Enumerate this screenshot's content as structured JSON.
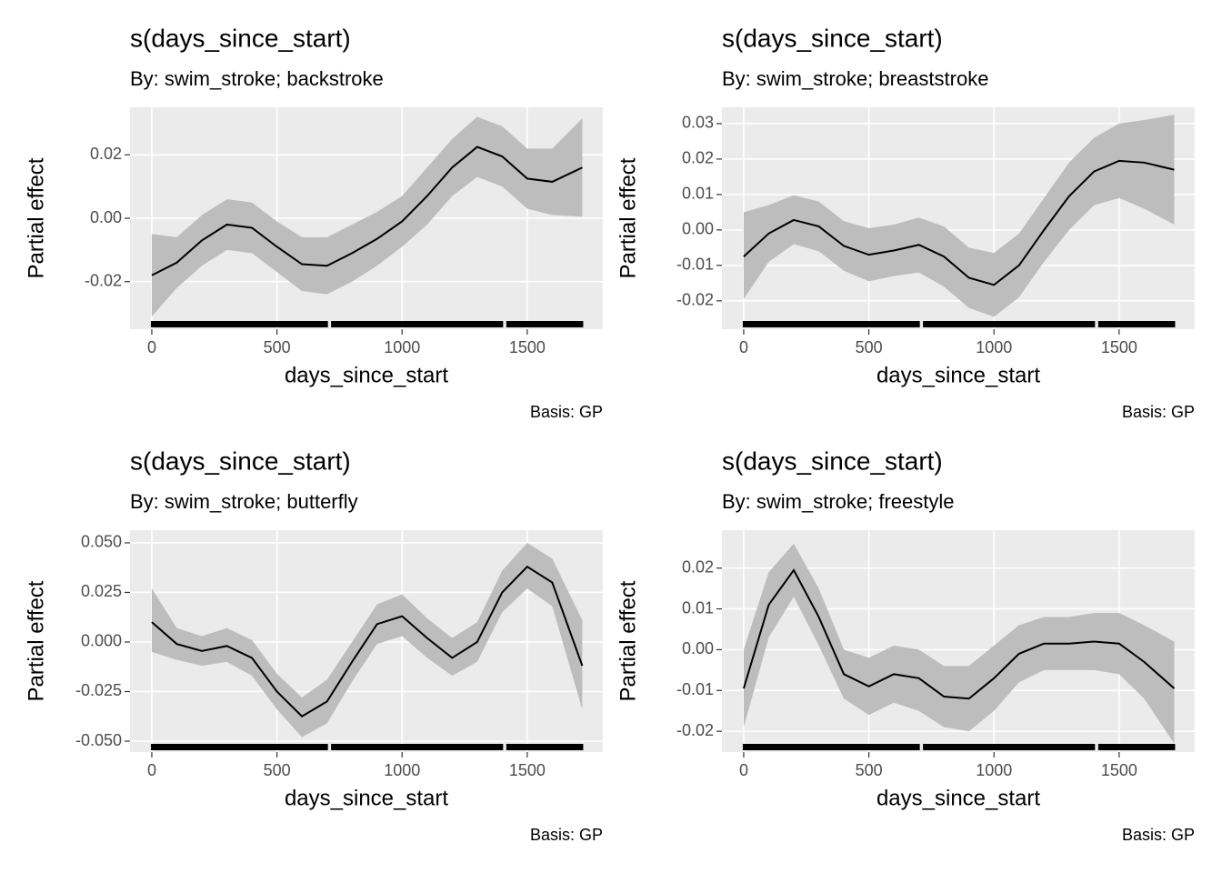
{
  "chart_data": [
    {
      "type": "line",
      "title": "s(days_since_start)",
      "subtitle": "By: swim_stroke; backstroke",
      "xlabel": "days_since_start",
      "ylabel": "Partial effect",
      "caption": "Basis: GP",
      "x": [
        0,
        100,
        200,
        300,
        400,
        500,
        600,
        700,
        800,
        900,
        1000,
        1100,
        1200,
        1300,
        1400,
        1500,
        1600,
        1720
      ],
      "values": [
        -0.018,
        -0.014,
        -0.007,
        -0.002,
        -0.003,
        -0.009,
        -0.0145,
        -0.015,
        -0.011,
        -0.0065,
        -0.001,
        0.007,
        0.016,
        0.0225,
        0.0195,
        0.0125,
        0.0115,
        0.016
      ],
      "lower": [
        -0.031,
        -0.022,
        -0.015,
        -0.01,
        -0.011,
        -0.017,
        -0.023,
        -0.024,
        -0.02,
        -0.015,
        -0.009,
        -0.002,
        0.007,
        0.013,
        0.01,
        0.003,
        0.001,
        0.0005
      ],
      "upper": [
        -0.005,
        -0.006,
        0.001,
        0.006,
        0.005,
        -0.001,
        -0.006,
        -0.006,
        -0.002,
        0.002,
        0.007,
        0.016,
        0.025,
        0.032,
        0.029,
        0.022,
        0.022,
        0.0315
      ],
      "rug": [
        [
          0,
          700
        ],
        [
          720,
          1400
        ],
        [
          1420,
          1720
        ]
      ],
      "color": "#000000",
      "band_color": "#bdbdbd",
      "xlim": [
        -87,
        1802
      ],
      "xticks": [
        0,
        500,
        1000,
        1500
      ],
      "ylim": [
        -0.035,
        0.035
      ],
      "yticks": [
        -0.02,
        {
          "value": 0,
          "label": "0.00"
        },
        0.02
      ],
      "grid": true
    },
    {
      "type": "line",
      "title": "s(days_since_start)",
      "subtitle": "By: swim_stroke; breaststroke",
      "xlabel": "days_since_start",
      "ylabel": "Partial effect",
      "caption": "Basis: GP",
      "x": [
        0,
        100,
        200,
        300,
        400,
        500,
        600,
        700,
        800,
        900,
        1000,
        1100,
        1200,
        1300,
        1400,
        1500,
        1600,
        1720
      ],
      "values": [
        -0.0075,
        -0.001,
        0.0028,
        0.001,
        -0.0045,
        -0.007,
        -0.0058,
        -0.0042,
        -0.0075,
        -0.0135,
        -0.0155,
        -0.01,
        0.0,
        0.0095,
        0.0165,
        0.0195,
        0.019,
        0.017
      ],
      "lower": [
        -0.0195,
        -0.009,
        -0.004,
        -0.006,
        -0.0115,
        -0.0145,
        -0.013,
        -0.012,
        -0.016,
        -0.022,
        -0.0245,
        -0.019,
        -0.009,
        0.0,
        0.007,
        0.009,
        0.006,
        0.0015
      ],
      "upper": [
        0.005,
        0.007,
        0.0098,
        0.008,
        0.0025,
        0.0005,
        0.0015,
        0.0035,
        0.001,
        -0.005,
        -0.0065,
        -0.001,
        0.009,
        0.019,
        0.026,
        0.03,
        0.031,
        0.0325
      ],
      "rug": [
        [
          0,
          700
        ],
        [
          720,
          1400
        ],
        [
          1420,
          1720
        ]
      ],
      "color": "#000000",
      "band_color": "#bdbdbd",
      "xlim": [
        -87,
        1802
      ],
      "xticks": [
        0,
        500,
        1000,
        1500
      ],
      "ylim": [
        -0.028,
        0.0346
      ],
      "yticks": [
        -0.02,
        -0.01,
        {
          "value": 0,
          "label": "0.00"
        },
        0.01,
        0.02,
        0.03
      ],
      "grid": true
    },
    {
      "type": "line",
      "title": "s(days_since_start)",
      "subtitle": "By: swim_stroke; butterfly",
      "xlabel": "days_since_start",
      "ylabel": "Partial effect",
      "caption": "Basis: GP",
      "x": [
        0,
        100,
        200,
        300,
        400,
        500,
        600,
        700,
        800,
        900,
        1000,
        1100,
        1200,
        1300,
        1400,
        1500,
        1600,
        1720
      ],
      "values": [
        0.01,
        -0.001,
        -0.0045,
        -0.002,
        -0.008,
        -0.025,
        -0.0375,
        -0.03,
        -0.01,
        0.009,
        0.013,
        0.002,
        -0.008,
        0.0,
        0.025,
        0.038,
        0.03,
        -0.012
      ],
      "lower": [
        -0.005,
        -0.009,
        -0.012,
        -0.01,
        -0.017,
        -0.034,
        -0.048,
        -0.041,
        -0.02,
        -0.001,
        0.003,
        -0.008,
        -0.017,
        -0.01,
        0.015,
        0.027,
        0.018,
        -0.034
      ],
      "upper": [
        0.027,
        0.007,
        0.003,
        0.007,
        0.001,
        -0.016,
        -0.028,
        -0.019,
        0.0,
        0.019,
        0.024,
        0.012,
        0.002,
        0.01,
        0.036,
        0.05,
        0.042,
        0.011
      ],
      "rug": [
        [
          0,
          700
        ],
        [
          720,
          1400
        ],
        [
          1420,
          1720
        ]
      ],
      "color": "#000000",
      "band_color": "#bdbdbd",
      "xlim": [
        -87,
        1802
      ],
      "xticks": [
        0,
        500,
        1000,
        1500
      ],
      "ylim": [
        -0.0555,
        0.0564
      ],
      "yticks": [
        {
          "value": -0.05,
          "label": "-0.050"
        },
        {
          "value": -0.025,
          "label": "-0.025"
        },
        {
          "value": 0,
          "label": "0.000"
        },
        {
          "value": 0.025,
          "label": "0.025"
        },
        {
          "value": 0.05,
          "label": "0.050"
        }
      ],
      "grid": true
    },
    {
      "type": "line",
      "title": "s(days_since_start)",
      "subtitle": "By: swim_stroke; freestyle",
      "xlabel": "days_since_start",
      "ylabel": "Partial effect",
      "caption": "Basis: GP",
      "x": [
        0,
        100,
        200,
        300,
        400,
        500,
        600,
        700,
        800,
        900,
        1000,
        1100,
        1200,
        1300,
        1400,
        1500,
        1600,
        1720
      ],
      "values": [
        -0.0095,
        0.011,
        0.0195,
        0.008,
        -0.006,
        -0.009,
        -0.006,
        -0.007,
        -0.0115,
        -0.012,
        -0.007,
        -0.001,
        0.0015,
        0.0015,
        0.002,
        0.0015,
        -0.003,
        -0.0095
      ],
      "lower": [
        -0.019,
        0.003,
        0.013,
        0.001,
        -0.012,
        -0.016,
        -0.013,
        -0.015,
        -0.019,
        -0.02,
        -0.015,
        -0.008,
        -0.005,
        -0.005,
        -0.005,
        -0.006,
        -0.012,
        -0.023
      ],
      "upper": [
        0.0,
        0.019,
        0.026,
        0.015,
        0.0,
        -0.002,
        0.001,
        0.0,
        -0.004,
        -0.004,
        0.001,
        0.006,
        0.008,
        0.008,
        0.009,
        0.009,
        0.006,
        0.002
      ],
      "rug": [
        [
          0,
          700
        ],
        [
          720,
          1400
        ],
        [
          1420,
          1720
        ]
      ],
      "color": "#000000",
      "band_color": "#bdbdbd",
      "xlim": [
        -87,
        1802
      ],
      "xticks": [
        0,
        500,
        1000,
        1500
      ],
      "ylim": [
        -0.0251,
        0.0293
      ],
      "yticks": [
        -0.02,
        -0.01,
        {
          "value": 0,
          "label": "0.00"
        },
        0.01,
        0.02
      ],
      "grid": true
    }
  ]
}
